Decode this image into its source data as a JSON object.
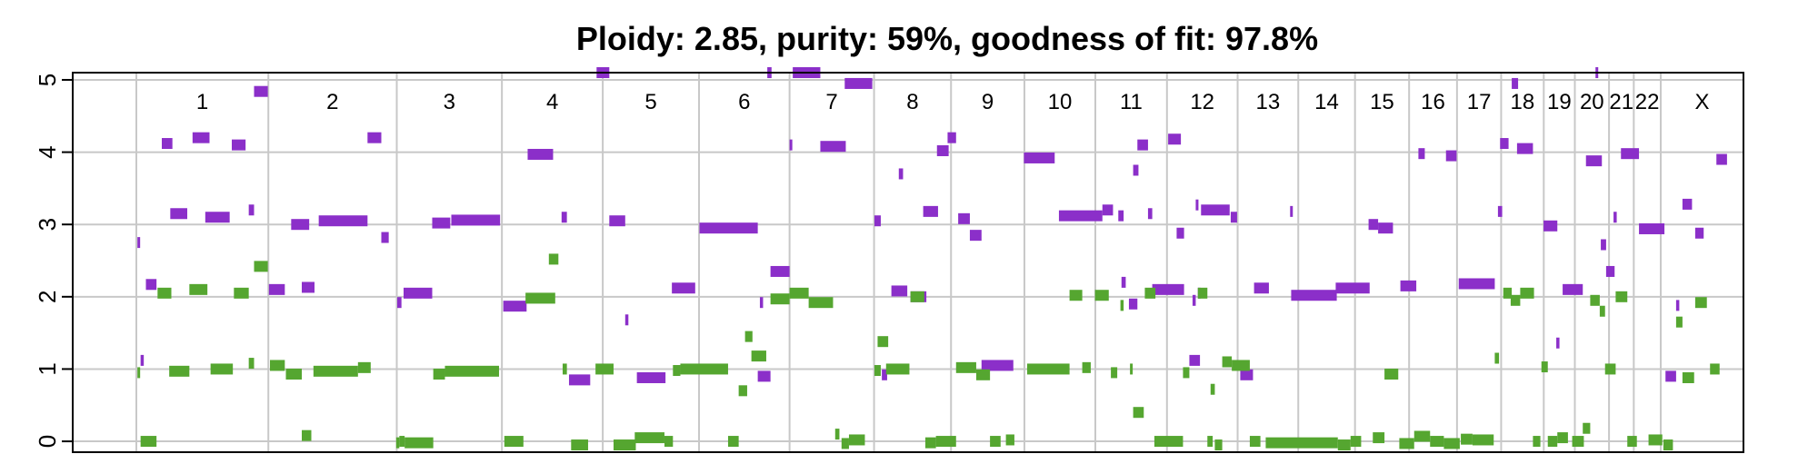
{
  "chart_data": {
    "type": "scatter",
    "title": "Ploidy: 2.85, purity: 59%, goodness of fit: 97.8%",
    "xlabel": "",
    "ylabel": "",
    "ylim": [
      -0.15,
      5.1
    ],
    "yticks": [
      0,
      1,
      2,
      3,
      4,
      5
    ],
    "grid": true,
    "legend": "none",
    "colors": {
      "major": "#8b2fc9",
      "minor": "#55a630",
      "grid": "#c8c8c8",
      "axis": "#000000"
    },
    "chromosomes": [
      {
        "name": "1",
        "start": 0.0,
        "end": 248.96
      },
      {
        "name": "2",
        "start": 248.96,
        "end": 491.15
      },
      {
        "name": "3",
        "start": 491.15,
        "end": 689.44
      },
      {
        "name": "4",
        "start": 689.44,
        "end": 879.66
      },
      {
        "name": "5",
        "start": 879.66,
        "end": 1061.2
      },
      {
        "name": "6",
        "start": 1061.2,
        "end": 1232.0
      },
      {
        "name": "7",
        "start": 1232.0,
        "end": 1391.35
      },
      {
        "name": "8",
        "start": 1391.35,
        "end": 1536.49
      },
      {
        "name": "9",
        "start": 1536.49,
        "end": 1674.88
      },
      {
        "name": "10",
        "start": 1674.88,
        "end": 1808.68
      },
      {
        "name": "11",
        "start": 1808.68,
        "end": 1943.77
      },
      {
        "name": "12",
        "start": 1943.77,
        "end": 2077.04
      },
      {
        "name": "13",
        "start": 2077.04,
        "end": 2191.4
      },
      {
        "name": "14",
        "start": 2191.4,
        "end": 2298.44
      },
      {
        "name": "15",
        "start": 2298.44,
        "end": 2400.43
      },
      {
        "name": "16",
        "start": 2400.43,
        "end": 2490.77
      },
      {
        "name": "17",
        "start": 2490.77,
        "end": 2574.03
      },
      {
        "name": "18",
        "start": 2574.03,
        "end": 2654.4
      },
      {
        "name": "19",
        "start": 2654.4,
        "end": 2713.02
      },
      {
        "name": "20",
        "start": 2713.02,
        "end": 2777.47
      },
      {
        "name": "21",
        "start": 2777.47,
        "end": 2824.18
      },
      {
        "name": "22",
        "start": 2824.18,
        "end": 2875.0
      },
      {
        "name": "X",
        "start": 2875.0,
        "end": 3031.04
      }
    ],
    "series": [
      {
        "key": "major",
        "segments": [
          [
            2,
            6,
            2.75
          ],
          [
            8,
            14,
            1.12
          ],
          [
            18,
            38,
            2.17
          ],
          [
            48,
            68,
            4.12
          ],
          [
            64,
            96,
            3.15
          ],
          [
            106,
            138,
            4.2
          ],
          [
            130,
            176,
            3.1
          ],
          [
            180,
            206,
            4.1
          ],
          [
            212,
            222,
            3.2
          ],
          [
            222,
            248,
            4.84
          ],
          [
            250,
            280,
            2.1
          ],
          [
            292,
            326,
            3.0
          ],
          [
            312,
            336,
            2.13
          ],
          [
            344,
            436,
            3.05
          ],
          [
            436,
            462,
            4.2
          ],
          [
            462,
            476,
            2.82
          ],
          [
            492,
            500,
            1.92
          ],
          [
            504,
            558,
            2.05
          ],
          [
            558,
            592,
            3.02
          ],
          [
            594,
            686,
            3.06
          ],
          [
            692,
            736,
            1.87
          ],
          [
            738,
            786,
            3.97
          ],
          [
            802,
            812,
            3.1
          ],
          [
            816,
            856,
            0.85
          ],
          [
            868,
            892,
            5.1
          ],
          [
            892,
            922,
            3.05
          ],
          [
            922,
            928,
            1.68
          ],
          [
            944,
            998,
            0.88
          ],
          [
            1010,
            1054,
            2.12
          ],
          [
            1062,
            1172,
            2.95
          ],
          [
            1172,
            1196,
            0.9
          ],
          [
            1176,
            1182,
            1.92
          ],
          [
            1190,
            1198,
            5.1
          ],
          [
            1196,
            1232,
            2.35
          ],
          [
            1232,
            1236,
            4.1
          ],
          [
            1238,
            1290,
            5.1
          ],
          [
            1290,
            1338,
            4.08
          ],
          [
            1336,
            1388,
            4.95
          ],
          [
            1392,
            1404,
            3.05
          ],
          [
            1406,
            1416,
            0.92
          ],
          [
            1424,
            1454,
            2.08
          ],
          [
            1438,
            1446,
            3.7
          ],
          [
            1460,
            1490,
            2.0
          ],
          [
            1484,
            1512,
            3.18
          ],
          [
            1510,
            1532,
            4.02
          ],
          [
            1530,
            1546,
            4.2
          ],
          [
            1550,
            1572,
            3.08
          ],
          [
            1572,
            1594,
            2.85
          ],
          [
            1594,
            1654,
            1.05
          ],
          [
            1674,
            1732,
            3.92
          ],
          [
            1740,
            1822,
            3.12
          ],
          [
            1822,
            1842,
            3.2
          ],
          [
            1852,
            1862,
            3.12
          ],
          [
            1858,
            1866,
            2.2
          ],
          [
            1872,
            1888,
            1.9
          ],
          [
            1880,
            1890,
            3.75
          ],
          [
            1888,
            1908,
            4.1
          ],
          [
            1908,
            1916,
            3.15
          ],
          [
            1916,
            1976,
            2.1
          ],
          [
            1946,
            1970,
            4.18
          ],
          [
            1962,
            1976,
            2.88
          ],
          [
            1986,
            2006,
            1.12
          ],
          [
            1992,
            1998,
            1.95
          ],
          [
            1998,
            2002,
            3.27
          ],
          [
            2002,
            2004,
            2.05
          ],
          [
            2008,
            2062,
            3.2
          ],
          [
            2064,
            2076,
            3.1
          ],
          [
            2082,
            2106,
            0.92
          ],
          [
            2108,
            2136,
            2.12
          ],
          [
            2176,
            2180,
            3.18
          ],
          [
            2178,
            2264,
            2.02
          ],
          [
            2262,
            2326,
            2.12
          ],
          [
            2324,
            2342,
            3.0
          ],
          [
            2342,
            2370,
            2.95
          ],
          [
            2384,
            2414,
            2.15
          ],
          [
            2418,
            2430,
            3.98
          ],
          [
            2470,
            2490,
            3.95
          ],
          [
            2494,
            2562,
            2.18
          ],
          [
            2568,
            2576,
            3.18
          ],
          [
            2572,
            2588,
            4.12
          ],
          [
            2594,
            2606,
            4.95
          ],
          [
            2604,
            2634,
            4.05
          ],
          [
            2654,
            2680,
            2.98
          ],
          [
            2678,
            2684,
            1.36
          ],
          [
            2690,
            2728,
            2.1
          ],
          [
            2734,
            2764,
            3.88
          ],
          [
            2752,
            2756,
            5.1
          ],
          [
            2762,
            2772,
            2.72
          ],
          [
            2772,
            2788,
            2.35
          ],
          [
            2786,
            2792,
            3.1
          ],
          [
            2800,
            2834,
            3.98
          ],
          [
            2834,
            2882,
            2.94
          ],
          [
            2884,
            2904,
            0.9
          ],
          [
            2904,
            2910,
            1.88
          ],
          [
            2916,
            2934,
            3.28
          ],
          [
            2940,
            2956,
            2.88
          ],
          [
            2980,
            3000,
            3.9
          ]
        ]
      },
      {
        "key": "minor",
        "segments": [
          [
            2,
            6,
            0.95
          ],
          [
            8,
            38,
            0.0
          ],
          [
            40,
            66,
            2.05
          ],
          [
            62,
            100,
            0.97
          ],
          [
            100,
            134,
            2.1
          ],
          [
            140,
            182,
            1.0
          ],
          [
            184,
            212,
            2.05
          ],
          [
            212,
            222,
            1.08
          ],
          [
            222,
            248,
            2.42
          ],
          [
            252,
            280,
            1.05
          ],
          [
            282,
            312,
            0.93
          ],
          [
            312,
            330,
            0.08
          ],
          [
            334,
            418,
            0.97
          ],
          [
            418,
            442,
            1.02
          ],
          [
            490,
            496,
            -0.02
          ],
          [
            496,
            506,
            0.0
          ],
          [
            506,
            560,
            -0.02
          ],
          [
            560,
            582,
            0.93
          ],
          [
            582,
            684,
            0.97
          ],
          [
            694,
            730,
            0.0
          ],
          [
            734,
            790,
            1.98
          ],
          [
            778,
            796,
            2.52
          ],
          [
            804,
            812,
            1.0
          ],
          [
            820,
            852,
            -0.05
          ],
          [
            866,
            900,
            1.0
          ],
          [
            900,
            942,
            -0.05
          ],
          [
            940,
            996,
            0.05
          ],
          [
            996,
            1012,
            0.0
          ],
          [
            1012,
            1026,
            0.98
          ],
          [
            1026,
            1116,
            1.0
          ],
          [
            1116,
            1136,
            0.0
          ],
          [
            1136,
            1152,
            0.7
          ],
          [
            1148,
            1162,
            1.45
          ],
          [
            1160,
            1188,
            1.18
          ],
          [
            1196,
            1232,
            1.97
          ],
          [
            1232,
            1268,
            2.05
          ],
          [
            1268,
            1314,
            1.92
          ],
          [
            1318,
            1326,
            0.1
          ],
          [
            1330,
            1344,
            -0.03
          ],
          [
            1344,
            1374,
            0.02
          ],
          [
            1392,
            1404,
            0.98
          ],
          [
            1398,
            1418,
            1.38
          ],
          [
            1414,
            1458,
            1.0
          ],
          [
            1460,
            1486,
            2.0
          ],
          [
            1488,
            1508,
            -0.02
          ],
          [
            1508,
            1546,
            0.0
          ],
          [
            1546,
            1584,
            1.02
          ],
          [
            1584,
            1610,
            0.92
          ],
          [
            1610,
            1630,
            0.0
          ],
          [
            1640,
            1656,
            0.02
          ],
          [
            1680,
            1760,
            1.0
          ],
          [
            1760,
            1784,
            2.02
          ],
          [
            1784,
            1800,
            1.02
          ],
          [
            1808,
            1834,
            2.02
          ],
          [
            1838,
            1850,
            0.95
          ],
          [
            1856,
            1862,
            1.88
          ],
          [
            1874,
            1878,
            1.0
          ],
          [
            1880,
            1900,
            0.4
          ],
          [
            1902,
            1922,
            2.05
          ],
          [
            1920,
            1974,
            0.0
          ],
          [
            1974,
            1986,
            0.95
          ],
          [
            2002,
            2020,
            2.05
          ],
          [
            2020,
            2030,
            0.0
          ],
          [
            2026,
            2034,
            0.72
          ],
          [
            2034,
            2048,
            -0.05
          ],
          [
            2048,
            2066,
            1.1
          ],
          [
            2066,
            2100,
            1.05
          ],
          [
            2100,
            2120,
            0.0
          ],
          [
            2130,
            2266,
            -0.02
          ],
          [
            2266,
            2290,
            -0.05
          ],
          [
            2290,
            2310,
            0.0
          ],
          [
            2332,
            2354,
            0.05
          ],
          [
            2354,
            2380,
            0.93
          ],
          [
            2382,
            2410,
            -0.03
          ],
          [
            2410,
            2440,
            0.07
          ],
          [
            2440,
            2466,
            0.0
          ],
          [
            2466,
            2496,
            -0.03
          ],
          [
            2498,
            2520,
            0.03
          ],
          [
            2520,
            2560,
            0.02
          ],
          [
            2562,
            2570,
            1.15
          ],
          [
            2578,
            2594,
            2.05
          ],
          [
            2592,
            2610,
            1.95
          ],
          [
            2610,
            2636,
            2.05
          ],
          [
            2634,
            2648,
            0.0
          ],
          [
            2650,
            2662,
            1.03
          ],
          [
            2662,
            2680,
            0.0
          ],
          [
            2680,
            2700,
            0.05
          ],
          [
            2708,
            2730,
            0.0
          ],
          [
            2728,
            2742,
            0.18
          ],
          [
            2742,
            2760,
            1.95
          ],
          [
            2760,
            2770,
            1.8
          ],
          [
            2770,
            2790,
            1.0
          ],
          [
            2790,
            2812,
            2.0
          ],
          [
            2812,
            2830,
            0.0
          ],
          [
            2852,
            2878,
            0.02
          ],
          [
            2880,
            2898,
            -0.05
          ],
          [
            2904,
            2916,
            1.65
          ],
          [
            2916,
            2938,
            0.88
          ],
          [
            2940,
            2962,
            1.92
          ],
          [
            2968,
            2986,
            1.0
          ]
        ]
      }
    ]
  }
}
